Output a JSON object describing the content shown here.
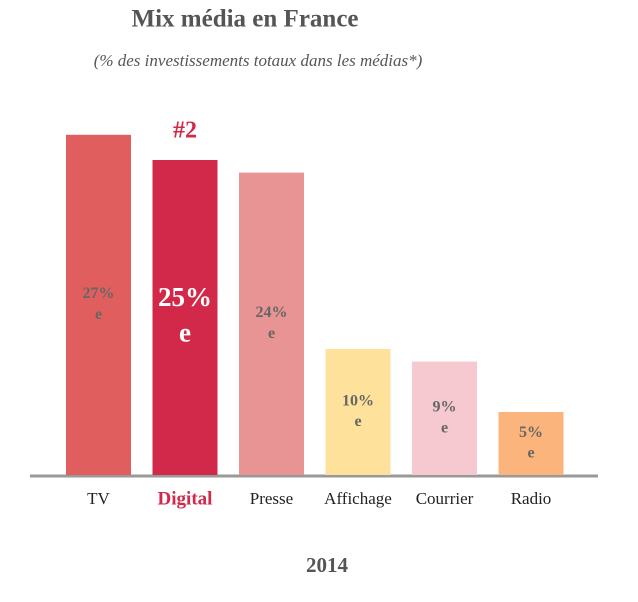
{
  "chart_data": {
    "type": "bar",
    "title": "Mix média en France",
    "subtitle": "(% des investissements totaux dans les médias*)",
    "categories": [
      "TV",
      "Digital",
      "Presse",
      "Affichage",
      "Courrier",
      "Radio"
    ],
    "values": [
      27,
      25,
      24,
      10,
      9,
      5
    ],
    "value_labels": [
      "27%",
      "25%",
      "24%",
      "10%",
      "9%",
      "5%"
    ],
    "value_label_note": "e",
    "colors": [
      "#e05e5e",
      "#d2294a",
      "#e99494",
      "#fee29b",
      "#f5c9cf",
      "#fbb57c"
    ],
    "annotation": {
      "text": "#2",
      "category": "Digital"
    },
    "xlabel": "2014"
  }
}
